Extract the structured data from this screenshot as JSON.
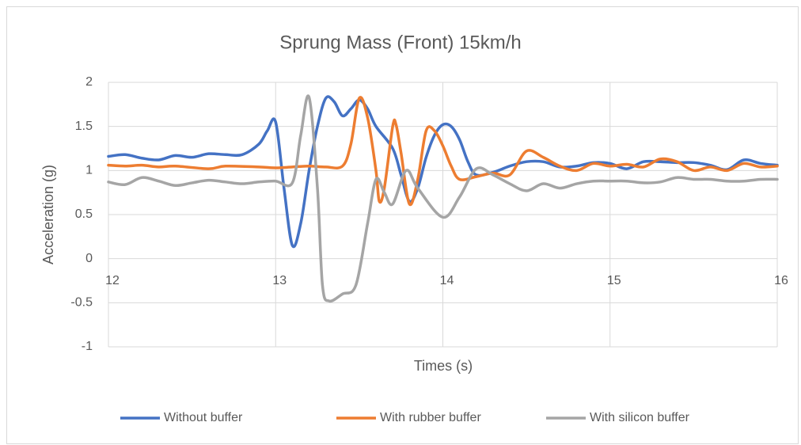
{
  "chart_data": {
    "type": "line",
    "title": "Sprung Mass (Front) 15km/h",
    "x_label": "Times (s)",
    "y_label": "Acceleration (g)",
    "xlim": [
      12,
      16
    ],
    "xticks": [
      12,
      13,
      14,
      15,
      16
    ],
    "ylim": [
      -1,
      2
    ],
    "yticks": [
      -1,
      -0.5,
      0,
      0.5,
      1,
      1.5,
      2
    ],
    "grid": true,
    "legend": "bottom",
    "series": [
      {
        "name": "Without buffer",
        "color": "#4472c4",
        "x": [
          12,
          12.1,
          12.2,
          12.3,
          12.4,
          12.5,
          12.6,
          12.7,
          12.8,
          12.9,
          12.95,
          13.0,
          13.05,
          13.1,
          13.15,
          13.2,
          13.25,
          13.3,
          13.35,
          13.4,
          13.45,
          13.5,
          13.55,
          13.6,
          13.7,
          13.75,
          13.8,
          13.85,
          13.9,
          13.95,
          14.0,
          14.05,
          14.1,
          14.15,
          14.2,
          14.3,
          14.4,
          14.5,
          14.6,
          14.7,
          14.8,
          14.9,
          15.0,
          15.1,
          15.2,
          15.3,
          15.4,
          15.5,
          15.6,
          15.7,
          15.8,
          15.9,
          16
        ],
        "values": [
          1.16,
          1.18,
          1.14,
          1.12,
          1.17,
          1.15,
          1.19,
          1.18,
          1.18,
          1.3,
          1.45,
          1.55,
          0.8,
          0.15,
          0.4,
          1.0,
          1.5,
          1.82,
          1.78,
          1.62,
          1.7,
          1.8,
          1.7,
          1.5,
          1.25,
          0.95,
          0.65,
          0.8,
          1.15,
          1.4,
          1.52,
          1.5,
          1.35,
          1.1,
          0.95,
          0.98,
          1.05,
          1.1,
          1.1,
          1.04,
          1.05,
          1.09,
          1.08,
          1.02,
          1.1,
          1.1,
          1.09,
          1.09,
          1.06,
          1.01,
          1.12,
          1.08,
          1.06
        ]
      },
      {
        "name": "With rubber buffer",
        "color": "#ed7d31",
        "x": [
          12,
          12.1,
          12.2,
          12.3,
          12.4,
          12.6,
          12.7,
          12.9,
          13.0,
          13.1,
          13.2,
          13.3,
          13.4,
          13.45,
          13.5,
          13.55,
          13.6,
          13.62,
          13.65,
          13.7,
          13.72,
          13.75,
          13.8,
          13.85,
          13.9,
          13.95,
          14.0,
          14.05,
          14.1,
          14.2,
          14.3,
          14.4,
          14.5,
          14.6,
          14.7,
          14.8,
          14.9,
          15.0,
          15.1,
          15.2,
          15.3,
          15.4,
          15.5,
          15.6,
          15.7,
          15.8,
          15.9,
          16
        ],
        "values": [
          1.06,
          1.05,
          1.06,
          1.04,
          1.05,
          1.02,
          1.05,
          1.04,
          1.03,
          1.04,
          1.05,
          1.04,
          1.05,
          1.3,
          1.82,
          1.6,
          1.0,
          0.65,
          0.8,
          1.5,
          1.52,
          1.2,
          0.62,
          0.9,
          1.45,
          1.45,
          1.28,
          1.05,
          0.9,
          0.93,
          0.97,
          0.95,
          1.22,
          1.15,
          1.05,
          1.0,
          1.08,
          1.05,
          1.07,
          1.04,
          1.13,
          1.1,
          1.0,
          1.04,
          1.0,
          1.08,
          1.04,
          1.05
        ]
      },
      {
        "name": "With silicon buffer",
        "color": "#a5a5a5",
        "x": [
          12,
          12.1,
          12.2,
          12.3,
          12.4,
          12.5,
          12.6,
          12.7,
          12.8,
          12.9,
          13.0,
          13.1,
          13.15,
          13.2,
          13.25,
          13.28,
          13.32,
          13.4,
          13.48,
          13.55,
          13.6,
          13.65,
          13.7,
          13.78,
          13.85,
          14.0,
          14.1,
          14.2,
          14.3,
          14.4,
          14.5,
          14.6,
          14.7,
          14.8,
          14.9,
          15.0,
          15.1,
          15.2,
          15.3,
          15.4,
          15.5,
          15.6,
          15.7,
          15.8,
          15.9,
          16
        ],
        "values": [
          0.87,
          0.84,
          0.92,
          0.88,
          0.83,
          0.86,
          0.89,
          0.87,
          0.85,
          0.87,
          0.88,
          0.86,
          1.4,
          1.83,
          0.8,
          -0.3,
          -0.48,
          -0.4,
          -0.3,
          0.4,
          0.9,
          0.75,
          0.62,
          1.0,
          0.8,
          0.47,
          0.7,
          1.02,
          0.95,
          0.85,
          0.77,
          0.85,
          0.8,
          0.85,
          0.88,
          0.88,
          0.88,
          0.86,
          0.87,
          0.92,
          0.9,
          0.9,
          0.88,
          0.88,
          0.9,
          0.9
        ]
      }
    ]
  }
}
